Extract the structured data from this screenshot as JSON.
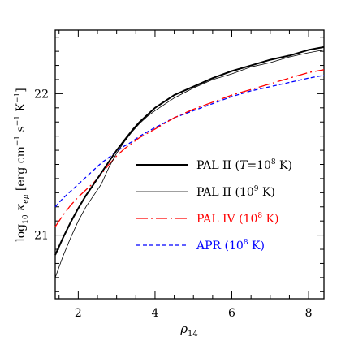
{
  "chart_data": {
    "type": "line",
    "xlabel": "ρ",
    "xlabel_sub": "14",
    "ylabel_parts": {
      "log": "log",
      "log_sub": "10",
      "kappa": "κ",
      "kappa_sub": "eμ",
      "units": "[erg cm",
      "exp1": "−1",
      "s": " s",
      "exp2": "−1",
      "K": " K",
      "exp3": "−1",
      "close": "]"
    },
    "xlim": [
      1.4,
      8.4
    ],
    "ylim": [
      20.55,
      22.45
    ],
    "x_major_ticks": [
      2,
      4,
      6,
      8
    ],
    "x_tick_labels": [
      "2",
      "4",
      "6",
      "8"
    ],
    "y_major_ticks": [
      21,
      22
    ],
    "y_tick_labels": [
      "21",
      "22"
    ],
    "legend_position": "center-right",
    "series": [
      {
        "name": "PAL II (T=10⁸ K)",
        "legend_parts": {
          "pre": "PAL II (",
          "T": "T",
          "mid": "=10",
          "sup": "8",
          "post": " K)"
        },
        "color": "#000000",
        "style": "solid-thick",
        "x": [
          1.4,
          1.6,
          1.8,
          2.0,
          2.2,
          2.4,
          2.6,
          2.8,
          3.0,
          3.2,
          3.4,
          3.6,
          3.8,
          4.0,
          4.5,
          5.0,
          5.5,
          6.0,
          6.5,
          7.0,
          7.5,
          8.0,
          8.4
        ],
        "y": [
          20.86,
          20.98,
          21.09,
          21.19,
          21.28,
          21.36,
          21.44,
          21.52,
          21.6,
          21.67,
          21.74,
          21.8,
          21.85,
          21.9,
          21.99,
          22.05,
          22.11,
          22.16,
          22.2,
          22.24,
          22.27,
          22.31,
          22.33
        ]
      },
      {
        "name": "PAL II (10⁹ K)",
        "legend_parts": {
          "pre": "PAL II (10",
          "sup": "9",
          "post": " K)"
        },
        "color": "#000000",
        "style": "solid-thin",
        "x": [
          1.4,
          1.6,
          1.8,
          2.0,
          2.2,
          2.4,
          2.6,
          2.8,
          3.0,
          3.2,
          3.4,
          3.6,
          3.8,
          4.0,
          4.5,
          5.0,
          5.5,
          6.0,
          6.5,
          7.0,
          7.5,
          8.0,
          8.4
        ],
        "y": [
          20.7,
          20.85,
          20.98,
          21.1,
          21.2,
          21.28,
          21.36,
          21.48,
          21.58,
          21.66,
          21.73,
          21.79,
          21.84,
          21.88,
          21.97,
          22.04,
          22.1,
          22.14,
          22.19,
          22.22,
          22.26,
          22.29,
          22.31
        ]
      },
      {
        "name": "PAL IV (10⁸ K)",
        "legend_parts": {
          "pre": "PAL IV (10",
          "sup": "8",
          "post": " K)"
        },
        "color": "#ff0000",
        "style": "long-dash-dot",
        "x": [
          1.4,
          1.6,
          1.8,
          2.0,
          2.2,
          2.4,
          2.6,
          2.8,
          3.0,
          3.2,
          3.4,
          3.6,
          3.8,
          4.0,
          4.5,
          5.0,
          5.5,
          6.0,
          6.5,
          7.0,
          7.5,
          8.0,
          8.4
        ],
        "y": [
          21.06,
          21.14,
          21.21,
          21.27,
          21.32,
          21.37,
          21.43,
          21.5,
          21.56,
          21.61,
          21.65,
          21.69,
          21.72,
          21.75,
          21.83,
          21.89,
          21.94,
          21.99,
          22.03,
          22.07,
          22.11,
          22.15,
          22.17
        ]
      },
      {
        "name": "APR (10⁸ K)",
        "legend_parts": {
          "pre": "APR (10",
          "sup": "8",
          "post": " K)"
        },
        "color": "#0000ff",
        "style": "short-dash",
        "x": [
          1.4,
          1.6,
          1.8,
          2.0,
          2.2,
          2.4,
          2.6,
          2.8,
          3.0,
          3.2,
          3.4,
          3.6,
          3.8,
          4.0,
          4.5,
          5.0,
          5.5,
          6.0,
          6.5,
          7.0,
          7.5,
          8.0,
          8.4
        ],
        "y": [
          21.2,
          21.26,
          21.31,
          21.36,
          21.41,
          21.46,
          21.51,
          21.55,
          21.59,
          21.63,
          21.66,
          21.7,
          21.73,
          21.76,
          21.83,
          21.88,
          21.93,
          21.98,
          22.02,
          22.05,
          22.08,
          22.11,
          22.13
        ]
      }
    ]
  }
}
